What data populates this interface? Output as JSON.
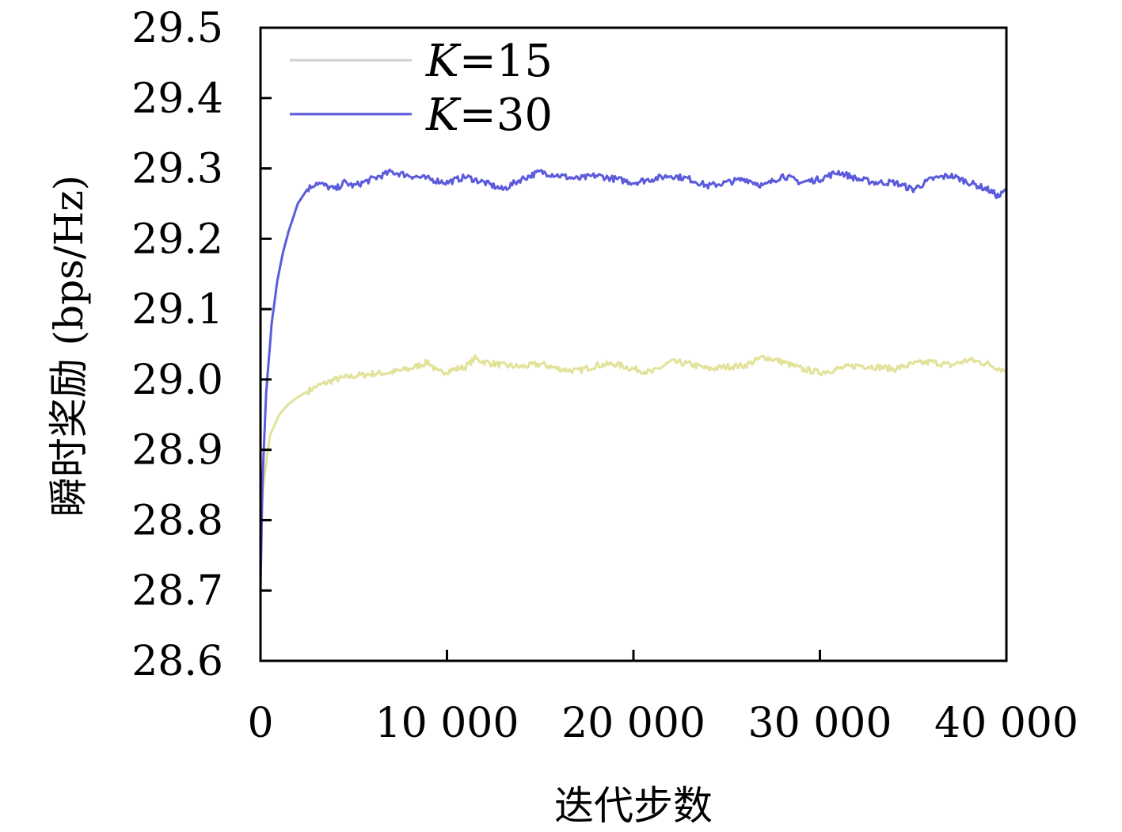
{
  "chart_data": {
    "type": "line",
    "title": "",
    "xlabel": "迭代步数",
    "ylabel": "瞬时奖励 (bps/Hz)",
    "xlim": [
      0,
      40000
    ],
    "ylim": [
      28.6,
      29.5
    ],
    "x_ticks": [
      0,
      10000,
      20000,
      30000,
      40000
    ],
    "x_tick_labels": [
      "0",
      "10 000",
      "20 000",
      "30 000",
      "40 000"
    ],
    "y_ticks": [
      28.6,
      28.7,
      28.8,
      28.9,
      29.0,
      29.1,
      29.2,
      29.3,
      29.4,
      29.5
    ],
    "y_tick_labels": [
      "28.6",
      "28.7",
      "28.8",
      "28.9",
      "29.0",
      "29.1",
      "29.2",
      "29.3",
      "29.4",
      "29.5"
    ],
    "grid": false,
    "legend_position": "top-left",
    "series": [
      {
        "name": "K=15",
        "legend_var": "K",
        "legend_value": "=15",
        "color": "#e2e29a",
        "legend_color": "#cfcfcf",
        "x": [
          0,
          200,
          500,
          1000,
          1500,
          2000,
          3000,
          4000,
          5000,
          6000,
          7000,
          8000,
          9000,
          9500,
          10000,
          11000,
          11500,
          12000,
          13000,
          14000,
          15000,
          16000,
          17000,
          18000,
          19000,
          20000,
          21000,
          22000,
          23000,
          24000,
          25000,
          26000,
          27000,
          28000,
          29000,
          30000,
          31000,
          32000,
          33000,
          34000,
          35000,
          36000,
          37000,
          38000,
          39000,
          40000
        ],
        "values": [
          28.8,
          28.86,
          28.92,
          28.95,
          28.965,
          28.975,
          28.99,
          29.0,
          29.005,
          29.008,
          29.01,
          29.015,
          29.025,
          29.01,
          29.012,
          29.018,
          29.03,
          29.025,
          29.02,
          29.018,
          29.022,
          29.015,
          29.012,
          29.02,
          29.022,
          29.015,
          29.01,
          29.025,
          29.022,
          29.015,
          29.018,
          29.02,
          29.032,
          29.025,
          29.015,
          29.01,
          29.015,
          29.02,
          29.018,
          29.015,
          29.022,
          29.025,
          29.02,
          29.028,
          29.022,
          29.012
        ]
      },
      {
        "name": "K=30",
        "legend_var": "K",
        "legend_value": "=30",
        "color": "#5b5bdc",
        "legend_color": "#5b5bdc",
        "x": [
          0,
          100,
          300,
          600,
          900,
          1200,
          1500,
          2000,
          2500,
          3000,
          3500,
          4000,
          4500,
          5000,
          6000,
          7000,
          8000,
          9000,
          10000,
          11000,
          12000,
          13000,
          14000,
          15000,
          16000,
          17000,
          18000,
          19000,
          20000,
          21000,
          22000,
          23000,
          24000,
          25000,
          26000,
          27000,
          28000,
          29000,
          30000,
          31000,
          32000,
          33000,
          34000,
          35000,
          36000,
          37000,
          38000,
          39000,
          39600,
          40000
        ],
        "values": [
          28.7,
          28.85,
          28.98,
          29.08,
          29.14,
          29.18,
          29.21,
          29.25,
          29.27,
          29.28,
          29.275,
          29.27,
          29.28,
          29.275,
          29.285,
          29.295,
          29.29,
          29.285,
          29.28,
          29.288,
          29.28,
          29.27,
          29.285,
          29.295,
          29.29,
          29.285,
          29.29,
          29.285,
          29.28,
          29.285,
          29.29,
          29.285,
          29.275,
          29.28,
          29.285,
          29.275,
          29.29,
          29.28,
          29.285,
          29.295,
          29.285,
          29.28,
          29.28,
          29.27,
          29.285,
          29.29,
          29.28,
          29.27,
          29.26,
          29.27
        ]
      }
    ]
  }
}
